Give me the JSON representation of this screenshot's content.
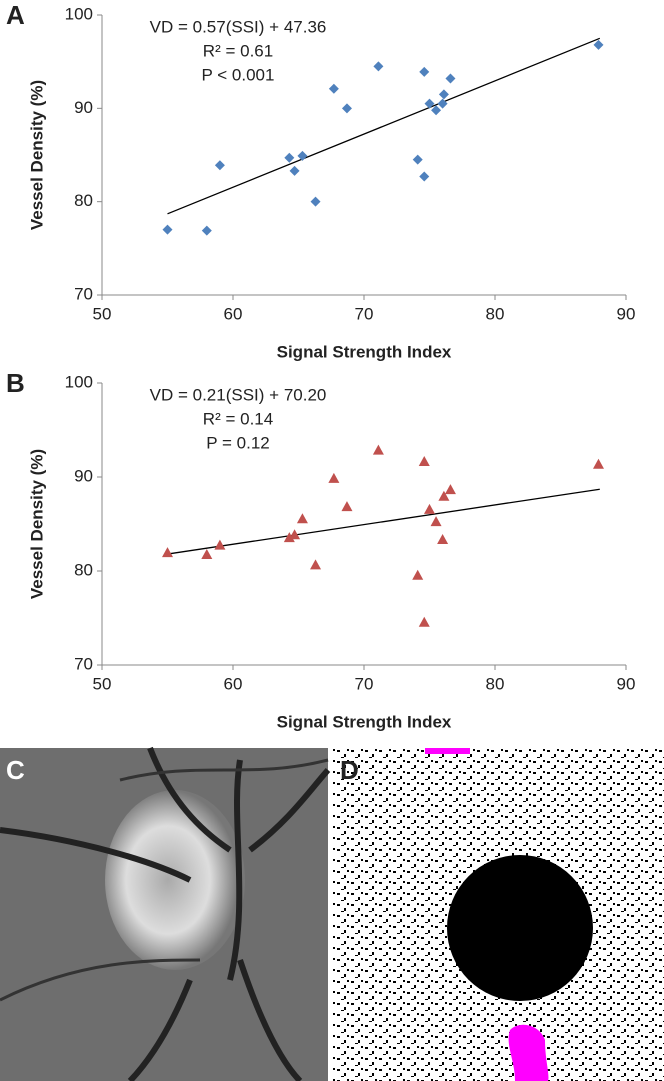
{
  "chart_data": [
    {
      "type": "scatter",
      "panel_label": "A",
      "marker": "diamond",
      "color": "#4f81bd",
      "x_label": "Signal Strength Index",
      "y_label": "Vessel Density (%)",
      "annotations": [
        "VD = 0.57(SSI) + 47.36",
        "R² = 0.61",
        "P < 0.001"
      ],
      "x": [
        55,
        58,
        59,
        64.3,
        64.7,
        65.3,
        66.3,
        67.7,
        68.7,
        71.1,
        74.1,
        74.6,
        74.6,
        75,
        75.5,
        76,
        76.1,
        76.6,
        87.9
      ],
      "values": [
        77,
        76.9,
        83.9,
        84.7,
        83.3,
        84.9,
        80,
        92.1,
        90,
        94.5,
        84.5,
        82.7,
        93.9,
        90.5,
        89.8,
        90.5,
        91.5,
        93.2,
        96.8
      ],
      "trendline": {
        "x": [
          55,
          88
        ],
        "y": [
          78.7,
          97.5
        ]
      },
      "xlim": [
        50,
        90
      ],
      "xticks": [
        50,
        60,
        70,
        80,
        90
      ],
      "ylim": [
        70,
        100
      ],
      "yticks": [
        70,
        80,
        90,
        100
      ],
      "grid": false
    },
    {
      "type": "scatter",
      "panel_label": "B",
      "marker": "triangle",
      "color": "#c0504d",
      "x_label": "Signal Strength Index",
      "y_label": "Vessel Density (%)",
      "annotations": [
        "VD = 0.21(SSI) + 70.20",
        "R² = 0.14",
        "P = 0.12"
      ],
      "x": [
        55,
        58,
        59,
        64.3,
        64.7,
        65.3,
        66.3,
        67.7,
        68.7,
        71.1,
        74.1,
        74.6,
        74.6,
        75,
        75.5,
        76,
        76.1,
        76.6,
        87.9
      ],
      "values": [
        81.9,
        81.7,
        82.7,
        83.5,
        83.8,
        85.5,
        80.6,
        89.8,
        86.8,
        92.8,
        79.5,
        74.5,
        91.6,
        86.5,
        85.2,
        83.3,
        87.9,
        88.6,
        91.3
      ],
      "trendline": {
        "x": [
          55,
          88
        ],
        "y": [
          81.8,
          88.7
        ]
      },
      "xlim": [
        50,
        90
      ],
      "xticks": [
        50,
        60,
        70,
        80,
        90
      ],
      "ylim": [
        70,
        100
      ],
      "yticks": [
        70,
        80,
        90,
        100
      ],
      "grid": false
    }
  ],
  "images": [
    {
      "label": "C"
    },
    {
      "label": "D"
    }
  ]
}
